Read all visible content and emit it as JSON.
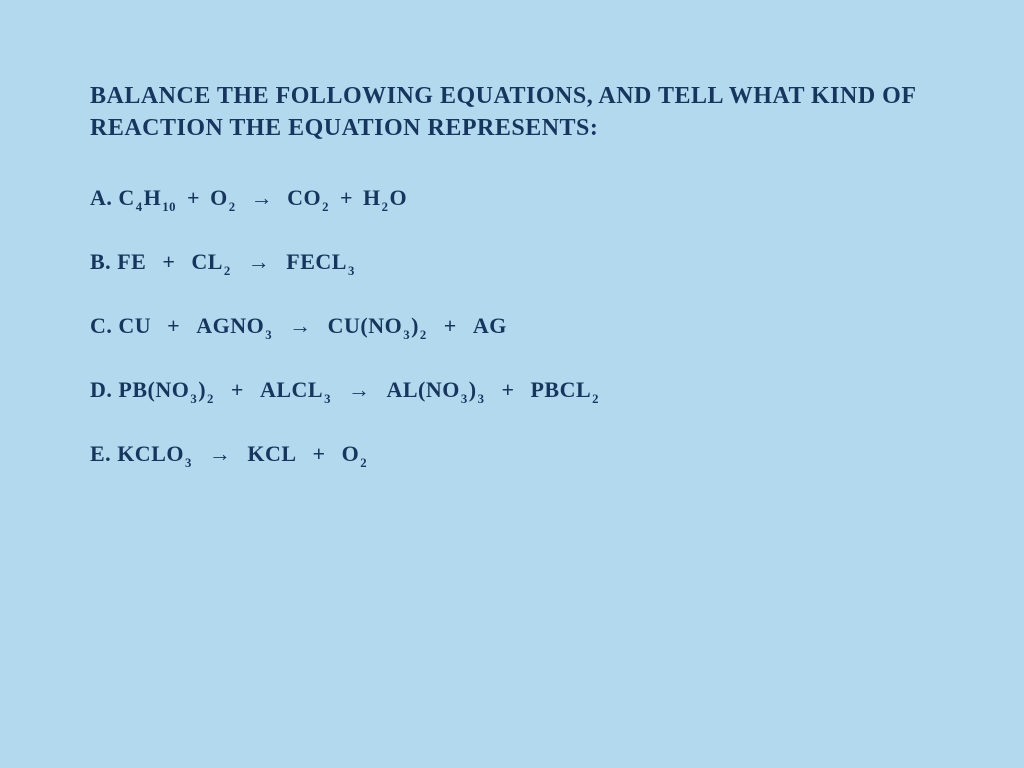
{
  "colors": {
    "background": "#b3d9ef",
    "text": "#17365d"
  },
  "typography": {
    "font_family": "Comic Sans MS",
    "heading_fontsize": 24,
    "body_fontsize": 22,
    "weight": "bold"
  },
  "heading": "Balance the following equations, and tell what kind of reaction the equation represents:",
  "equations": [
    {
      "label": "A.",
      "left": [
        {
          "base": "C",
          "sub": "4",
          "base2": "H",
          "sub2": "10"
        },
        {
          "base": "O",
          "sub": "2"
        }
      ],
      "arrow": "→",
      "right": [
        {
          "base": "CO",
          "sub": "2"
        },
        {
          "base": "H",
          "sub": "2",
          "base2": "O"
        }
      ],
      "spacing": "tight"
    },
    {
      "label": "B.",
      "left": [
        {
          "base": "Fe"
        },
        {
          "base": "Cl",
          "sub": "2"
        }
      ],
      "arrow": "→",
      "right": [
        {
          "base": "FeCl",
          "sub": "3"
        }
      ],
      "spacing": "wide"
    },
    {
      "label": "C.",
      "left": [
        {
          "base": "Cu"
        },
        {
          "base": "AgNO",
          "sub": "3"
        }
      ],
      "arrow": "→",
      "right": [
        {
          "base": "Cu(NO",
          "sub": "3",
          "base2": ")",
          "sub2": "2"
        },
        {
          "base": "Ag"
        }
      ],
      "spacing": "wide"
    },
    {
      "label": "D.",
      "left": [
        {
          "base": "Pb(NO",
          "sub": "3",
          "base2": ")",
          "sub2": "2"
        },
        {
          "base": "AlCl",
          "sub": "3"
        }
      ],
      "arrow": "→",
      "right": [
        {
          "base": "Al(NO",
          "sub": "3",
          "base2": ")",
          "sub2": "3"
        },
        {
          "base": "PbCl",
          "sub": "2"
        }
      ],
      "spacing": "wide"
    },
    {
      "label": "E.",
      "left": [
        {
          "base": "KClO",
          "sub": "3"
        }
      ],
      "arrow": "→",
      "right": [
        {
          "base": "KCl"
        },
        {
          "base": "O",
          "sub": "2"
        }
      ],
      "spacing": "wide"
    }
  ]
}
